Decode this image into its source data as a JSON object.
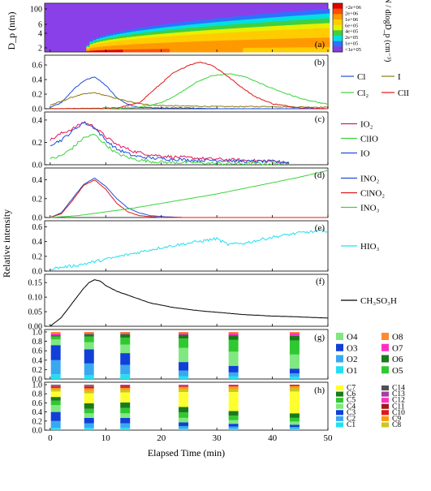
{
  "chart_data": {
    "type": "line",
    "x_axis": {
      "label": "Elapsed Time (min)",
      "range": [
        -1,
        50
      ],
      "ticks": [
        0,
        10,
        20,
        30,
        40,
        50
      ]
    },
    "y_axis_shared_label": "Relative intensity",
    "panels": [
      {
        "id": "a",
        "type": "heatmap",
        "ylabel": "D_p (nm)",
        "y_scale": "log",
        "yticks": [
          "100",
          "6",
          "4",
          "2"
        ],
        "colorbar": {
          "title": "dN / dlogD_p (cm⁻³)",
          "labels": [
            ">2e+06",
            "2e+06",
            "1e+06",
            "6e+05",
            "4e+05",
            "2e+05",
            "1e+05",
            "<1e+05"
          ],
          "colors": [
            "#e00000",
            "#ff5000",
            "#ff9900",
            "#ffcc00",
            "#e8f000",
            "#40d040",
            "#00e0e0",
            "#3070ff",
            "#8040e0"
          ]
        }
      },
      {
        "id": "b",
        "type": "line",
        "ylim": [
          0,
          0.7
        ],
        "yticks": [
          "0.0",
          "0.2",
          "0.4",
          "0.6"
        ],
        "series": [
          {
            "name": "Cl",
            "color": "#1f4fd8",
            "x": [
              0,
              2,
              4,
              6,
              8,
              10,
              12,
              14,
              16,
              20,
              25,
              30,
              40,
              50
            ],
            "y": [
              0.02,
              0.08,
              0.25,
              0.38,
              0.44,
              0.32,
              0.15,
              0.06,
              0.02,
              0.01,
              0.01,
              0.0,
              0.0,
              0.0
            ]
          },
          {
            "name": "I",
            "color": "#8a7a10",
            "x": [
              0,
              2,
              4,
              6,
              8,
              10,
              14,
              18,
              22,
              30,
              40,
              50
            ],
            "y": [
              0.05,
              0.1,
              0.16,
              0.2,
              0.22,
              0.18,
              0.1,
              0.05,
              0.04,
              0.03,
              0.03,
              0.02
            ]
          },
          {
            "name": "Cl₂",
            "color": "#3cd23c",
            "x": [
              0,
              10,
              16,
              20,
              23,
              26,
              29,
              32,
              35,
              38,
              42,
              46,
              50
            ],
            "y": [
              0.0,
              0.0,
              0.02,
              0.08,
              0.2,
              0.35,
              0.45,
              0.48,
              0.44,
              0.34,
              0.22,
              0.12,
              0.06
            ]
          },
          {
            "name": "ClI",
            "color": "#e01818",
            "x": [
              0,
              12,
              16,
              19,
              22,
              25,
              27,
              29,
              31,
              34,
              37,
              40,
              44,
              50
            ],
            "y": [
              0.0,
              0.01,
              0.08,
              0.28,
              0.48,
              0.6,
              0.64,
              0.6,
              0.5,
              0.32,
              0.16,
              0.07,
              0.02,
              0.0
            ]
          }
        ]
      },
      {
        "id": "c",
        "type": "line",
        "ylim": [
          0,
          0.45
        ],
        "yticks": [
          "0.0",
          "0.2",
          "0.4"
        ],
        "series": [
          {
            "name": "IO₂",
            "color": "#e0185a",
            "x": [
              0,
              2,
              4,
              6,
              8,
              10,
              12,
              15,
              18,
              22,
              26,
              30,
              35,
              40,
              43
            ],
            "y": [
              0.22,
              0.28,
              0.32,
              0.38,
              0.34,
              0.25,
              0.18,
              0.12,
              0.09,
              0.07,
              0.06,
              0.05,
              0.04,
              0.03,
              0.02
            ]
          },
          {
            "name": "ClIO",
            "color": "#3cd23c",
            "x": [
              0,
              2,
              4,
              6,
              8,
              10,
              12,
              15,
              18,
              22,
              26,
              30,
              35,
              40,
              43
            ],
            "y": [
              0.05,
              0.08,
              0.15,
              0.24,
              0.27,
              0.18,
              0.1,
              0.05,
              0.03,
              0.02,
              0.02,
              0.01,
              0.01,
              0.01,
              0.01
            ]
          },
          {
            "name": "IO",
            "color": "#1f4fd8",
            "x": [
              0,
              2,
              4,
              6,
              8,
              10,
              12,
              15,
              18,
              22,
              26,
              30,
              35,
              40,
              43
            ],
            "y": [
              0.18,
              0.22,
              0.3,
              0.38,
              0.33,
              0.22,
              0.14,
              0.08,
              0.06,
              0.05,
              0.04,
              0.04,
              0.03,
              0.03,
              0.02
            ]
          }
        ]
      },
      {
        "id": "d",
        "type": "line",
        "ylim": [
          0,
          0.5
        ],
        "yticks": [
          "0.0",
          "0.2",
          "0.4"
        ],
        "series": [
          {
            "name": "INO₂",
            "color": "#1f4fd8",
            "x": [
              0,
              2,
              4,
              6,
              8,
              10,
              12,
              14,
              16,
              18,
              20,
              24,
              30,
              40,
              50
            ],
            "y": [
              0.0,
              0.05,
              0.2,
              0.35,
              0.42,
              0.33,
              0.2,
              0.1,
              0.05,
              0.02,
              0.01,
              0.0,
              0.0,
              0.0,
              0.0
            ]
          },
          {
            "name": "ClNO₂",
            "color": "#e01818",
            "x": [
              0,
              2,
              4,
              6,
              8,
              10,
              12,
              14,
              16,
              18,
              20,
              24,
              30,
              40,
              50
            ],
            "y": [
              0.0,
              0.04,
              0.18,
              0.34,
              0.4,
              0.3,
              0.15,
              0.06,
              0.02,
              0.01,
              0.0,
              0.0,
              0.0,
              0.0,
              0.0
            ]
          },
          {
            "name": "INO₃",
            "color": "#3cd23c",
            "x": [
              0,
              5,
              10,
              15,
              20,
              25,
              30,
              35,
              40,
              45,
              50
            ],
            "y": [
              0.0,
              0.02,
              0.06,
              0.1,
              0.15,
              0.2,
              0.25,
              0.31,
              0.37,
              0.43,
              0.5
            ]
          }
        ]
      },
      {
        "id": "e",
        "type": "line",
        "ylim": [
          0,
          0.65
        ],
        "yticks": [
          "0.0",
          "0.2",
          "0.4",
          "0.6"
        ],
        "series": [
          {
            "name": "HIO₃",
            "color": "#22e0f0",
            "x": [
              0,
              5,
              10,
              15,
              20,
              25,
              30,
              32,
              35,
              40,
              45,
              50
            ],
            "y": [
              0.03,
              0.08,
              0.16,
              0.24,
              0.32,
              0.38,
              0.44,
              0.36,
              0.38,
              0.46,
              0.52,
              0.55
            ]
          }
        ]
      },
      {
        "id": "f",
        "type": "line",
        "ylim": [
          0,
          0.17
        ],
        "yticks": [
          "0.00",
          "0.05",
          "0.10",
          "0.15"
        ],
        "series": [
          {
            "name": "CH₃SO₃H",
            "color": "#000000",
            "x": [
              0,
              2,
              4,
              6,
              7,
              8,
              9,
              10,
              12,
              15,
              18,
              22,
              26,
              30,
              35,
              40,
              45,
              50
            ],
            "y": [
              0.0,
              0.03,
              0.08,
              0.13,
              0.15,
              0.16,
              0.155,
              0.14,
              0.12,
              0.1,
              0.08,
              0.065,
              0.055,
              0.048,
              0.04,
              0.035,
              0.032,
              0.028
            ]
          }
        ]
      },
      {
        "id": "g",
        "type": "stacked-bar",
        "ylim": [
          0,
          1.0
        ],
        "yticks": [
          "0.0",
          "0.2",
          "0.4",
          "0.6",
          "0.8",
          "1.0"
        ],
        "x": [
          1,
          7,
          13.5,
          24,
          33,
          44
        ],
        "components": [
          "O1",
          "O2",
          "O3",
          "O4",
          "O5",
          "O6",
          "O7",
          "O8"
        ],
        "colors": [
          "#22e0f0",
          "#3aa8f0",
          "#1040d8",
          "#80e880",
          "#30c830",
          "#1a7a1a",
          "#ff30c0",
          "#ff8a30"
        ],
        "values": [
          [
            0.1,
            0.3,
            0.32,
            0.12,
            0.06,
            0.03,
            0.04,
            0.03
          ],
          [
            0.08,
            0.25,
            0.3,
            0.15,
            0.12,
            0.05,
            0.03,
            0.02
          ],
          [
            0.1,
            0.2,
            0.25,
            0.18,
            0.15,
            0.07,
            0.03,
            0.02
          ],
          [
            0.06,
            0.12,
            0.18,
            0.3,
            0.2,
            0.08,
            0.04,
            0.02
          ],
          [
            0.06,
            0.08,
            0.14,
            0.3,
            0.25,
            0.1,
            0.05,
            0.02
          ],
          [
            0.05,
            0.07,
            0.1,
            0.3,
            0.3,
            0.1,
            0.06,
            0.02
          ]
        ]
      },
      {
        "id": "h",
        "type": "stacked-bar",
        "ylim": [
          0,
          1.0
        ],
        "yticks": [
          "0.0",
          "0.2",
          "0.4",
          "0.6",
          "0.8",
          "1.0"
        ],
        "x": [
          1,
          7,
          13.5,
          24,
          33,
          44
        ],
        "components": [
          "C1",
          "C2",
          "C3",
          "C4",
          "C5",
          "C6",
          "C7",
          "C8",
          "C9",
          "C10",
          "C11",
          "C12",
          "C13",
          "C14"
        ],
        "colors": [
          "#22e0f0",
          "#3aa8f0",
          "#1040d8",
          "#80e880",
          "#30c830",
          "#1a7a1a",
          "#ffff30",
          "#c8c820",
          "#ff9a10",
          "#e01818",
          "#a01818",
          "#ff30c0",
          "#a040a0",
          "#505050"
        ],
        "values": [
          [
            0.05,
            0.15,
            0.2,
            0.15,
            0.1,
            0.08,
            0.12,
            0.04,
            0.04,
            0.02,
            0.02,
            0.01,
            0.01,
            0.01
          ],
          [
            0.05,
            0.1,
            0.12,
            0.1,
            0.1,
            0.12,
            0.22,
            0.05,
            0.06,
            0.03,
            0.02,
            0.01,
            0.01,
            0.01
          ],
          [
            0.05,
            0.1,
            0.12,
            0.1,
            0.12,
            0.12,
            0.22,
            0.05,
            0.05,
            0.03,
            0.02,
            0.01,
            0.01,
            0.0
          ],
          [
            0.03,
            0.06,
            0.08,
            0.1,
            0.12,
            0.12,
            0.33,
            0.06,
            0.05,
            0.02,
            0.01,
            0.01,
            0.01,
            0.0
          ],
          [
            0.03,
            0.05,
            0.06,
            0.08,
            0.1,
            0.1,
            0.42,
            0.07,
            0.05,
            0.02,
            0.01,
            0.01,
            0.0,
            0.0
          ],
          [
            0.03,
            0.04,
            0.05,
            0.07,
            0.08,
            0.1,
            0.48,
            0.07,
            0.05,
            0.02,
            0.01,
            0.0,
            0.0,
            0.0
          ]
        ]
      }
    ]
  }
}
